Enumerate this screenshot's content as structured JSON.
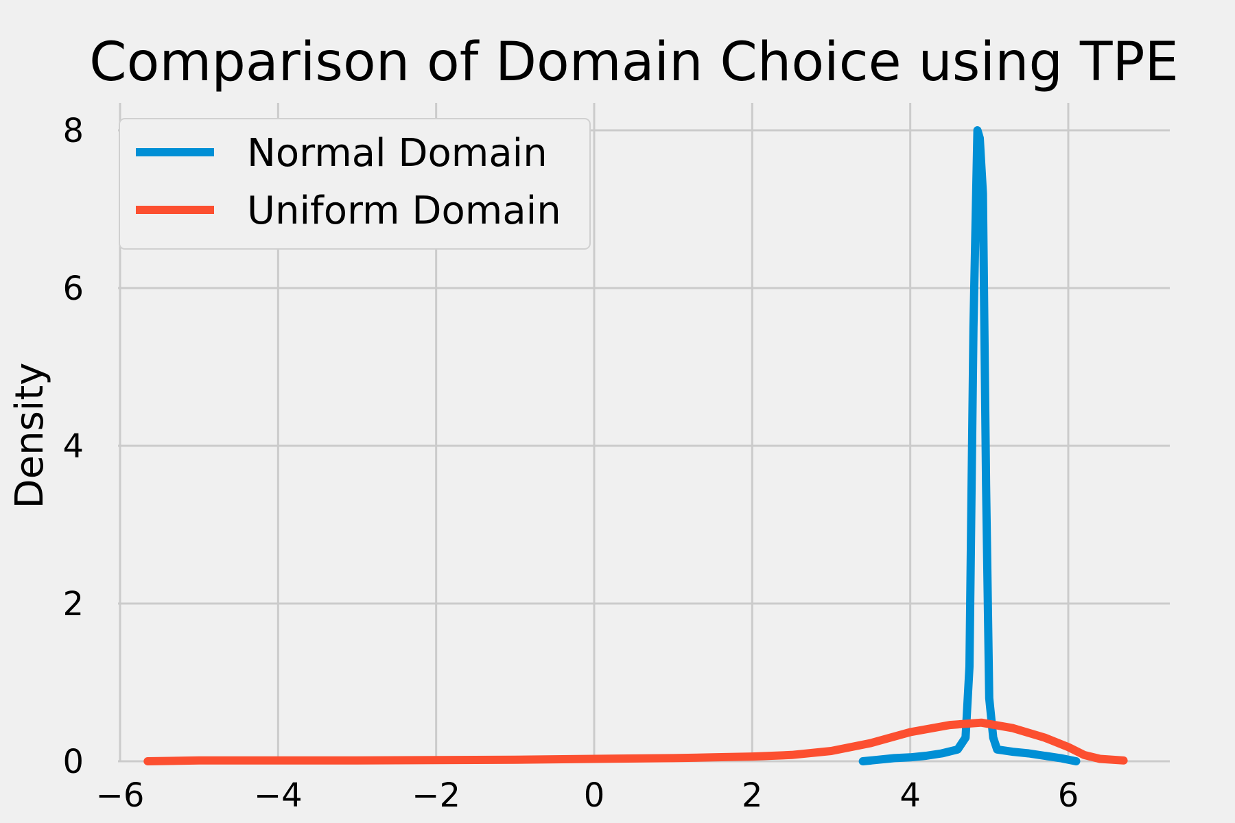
{
  "chart_data": {
    "type": "line",
    "title": "Comparison of Domain Choice using TPE",
    "xlabel": "",
    "ylabel": "Density",
    "xlim": [
      -6.0,
      7.3
    ],
    "ylim": [
      0,
      8.4
    ],
    "xticks": [
      -6,
      -4,
      -2,
      0,
      2,
      4,
      6
    ],
    "xtick_labels": [
      "−6",
      "−4",
      "−2",
      "0",
      "2",
      "4",
      "6"
    ],
    "yticks": [
      0,
      2,
      4,
      6,
      8
    ],
    "ytick_labels": [
      "0",
      "2",
      "4",
      "6",
      "8"
    ],
    "grid": true,
    "legend_position": "top-left",
    "series": [
      {
        "name": "Normal Domain",
        "color": "#008fd5",
        "x": [
          3.4,
          3.6,
          3.8,
          4.0,
          4.2,
          4.4,
          4.6,
          4.7,
          4.75,
          4.8,
          4.85,
          4.88,
          4.92,
          4.96,
          5.0,
          5.05,
          5.1,
          5.3,
          5.5,
          5.7,
          5.9,
          6.1
        ],
        "y": [
          0.0,
          0.02,
          0.04,
          0.05,
          0.07,
          0.1,
          0.15,
          0.3,
          1.2,
          5.5,
          8.0,
          7.9,
          7.2,
          3.5,
          0.8,
          0.3,
          0.15,
          0.12,
          0.1,
          0.07,
          0.04,
          0.0
        ]
      },
      {
        "name": "Uniform Domain",
        "color": "#fc4f30",
        "x": [
          -5.65,
          -5.0,
          -4.0,
          -3.0,
          -2.0,
          -1.0,
          0.0,
          1.0,
          1.5,
          2.0,
          2.5,
          3.0,
          3.5,
          4.0,
          4.5,
          4.9,
          5.3,
          5.7,
          6.0,
          6.2,
          6.4,
          6.7
        ],
        "y": [
          0.0,
          0.01,
          0.01,
          0.01,
          0.015,
          0.02,
          0.03,
          0.04,
          0.05,
          0.06,
          0.08,
          0.13,
          0.23,
          0.37,
          0.46,
          0.49,
          0.42,
          0.3,
          0.18,
          0.08,
          0.03,
          0.01
        ]
      }
    ]
  }
}
